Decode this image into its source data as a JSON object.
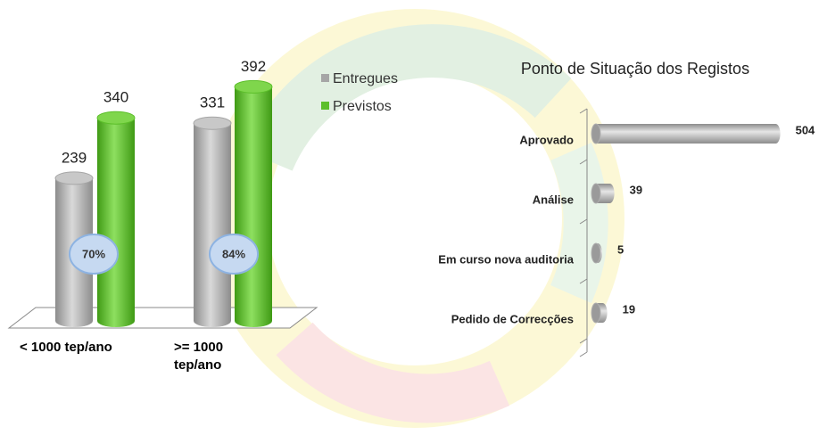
{
  "chart_data": [
    {
      "type": "cylinder-bar",
      "categories": [
        "< 1000 tep/ano",
        ">= 1000 tep/ano"
      ],
      "series": [
        {
          "name": "Entregues",
          "color": "#a6a6a6",
          "values": [
            239,
            331
          ]
        },
        {
          "name": "Previstos",
          "color": "#5cbf2a",
          "values": [
            340,
            392
          ]
        }
      ],
      "annotations": [
        "70%",
        "84%"
      ]
    },
    {
      "type": "horizontal-cylinder-bar",
      "title": "Ponto de Situação dos Registos",
      "categories": [
        "Aprovado",
        "Análise",
        "Em curso nova auditoria",
        "Pedido de Correcções"
      ],
      "values": [
        504,
        39,
        5,
        19
      ],
      "color": "#b0b0b0"
    }
  ]
}
